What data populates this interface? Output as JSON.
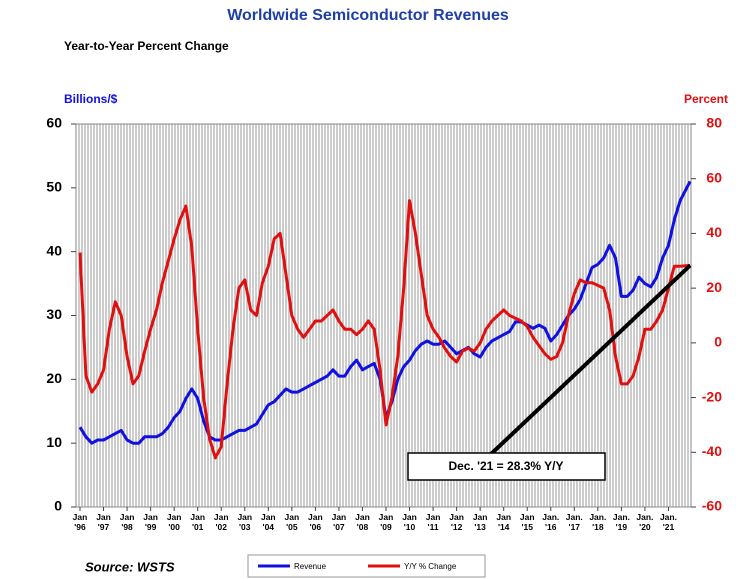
{
  "chart_data": {
    "type": "line",
    "title": "Worldwide Semiconductor Revenues",
    "subtitle": "Year-to-Year Percent Change",
    "y_label": "Billions/$",
    "y2_label": "Percent",
    "source": "Source: WSTS",
    "annotation": "Dec. '21 = 28.3% Y/Y",
    "xlim": [
      1996,
      2022
    ],
    "xticks": [
      {
        "value": 1996,
        "label": "Jan '96"
      },
      {
        "value": 1997,
        "label": "Jan '97"
      },
      {
        "value": 1998,
        "label": "Jan '98"
      },
      {
        "value": 1999,
        "label": "Jan '99"
      },
      {
        "value": 2000,
        "label": "Jan '00"
      },
      {
        "value": 2001,
        "label": "Jan '01"
      },
      {
        "value": 2002,
        "label": "Jan '02"
      },
      {
        "value": 2003,
        "label": "Jan '03"
      },
      {
        "value": 2004,
        "label": "Jan '04"
      },
      {
        "value": 2005,
        "label": "Jan '05"
      },
      {
        "value": 2006,
        "label": "Jan '06"
      },
      {
        "value": 2007,
        "label": "Jan '07"
      },
      {
        "value": 2008,
        "label": "Jan '08"
      },
      {
        "value": 2009,
        "label": "Jan '09"
      },
      {
        "value": 2010,
        "label": "Jan '10"
      },
      {
        "value": 2011,
        "label": "Jan '11"
      },
      {
        "value": 2012,
        "label": "Jan '12"
      },
      {
        "value": 2013,
        "label": "Jan '13"
      },
      {
        "value": 2014,
        "label": "Jan '14"
      },
      {
        "value": 2015,
        "label": "Jan '15"
      },
      {
        "value": 2016,
        "label": "Jan. '16"
      },
      {
        "value": 2017,
        "label": "Jan. '17"
      },
      {
        "value": 2018,
        "label": "Jan. '18"
      },
      {
        "value": 2019,
        "label": "Jan. '19"
      },
      {
        "value": 2020,
        "label": "Jan. '20"
      },
      {
        "value": 2021,
        "label": "Jan. '21"
      }
    ],
    "ylim": [
      0,
      60
    ],
    "yticks": [
      0,
      10,
      20,
      30,
      40,
      50,
      60
    ],
    "y2lim": [
      -60,
      80
    ],
    "y2ticks": [
      -60,
      -40,
      -20,
      0,
      20,
      40,
      60,
      80
    ],
    "x": [
      1996,
      1996.25,
      1996.5,
      1996.75,
      1997,
      1997.25,
      1997.5,
      1997.75,
      1998,
      1998.25,
      1998.5,
      1998.75,
      1999,
      1999.25,
      1999.5,
      1999.75,
      2000,
      2000.25,
      2000.5,
      2000.75,
      2001,
      2001.25,
      2001.5,
      2001.75,
      2002,
      2002.25,
      2002.5,
      2002.75,
      2003,
      2003.25,
      2003.5,
      2003.75,
      2004,
      2004.25,
      2004.5,
      2004.75,
      2005,
      2005.25,
      2005.5,
      2005.75,
      2006,
      2006.25,
      2006.5,
      2006.75,
      2007,
      2007.25,
      2007.5,
      2007.75,
      2008,
      2008.25,
      2008.5,
      2008.75,
      2009,
      2009.25,
      2009.5,
      2009.75,
      2010,
      2010.25,
      2010.5,
      2010.75,
      2011,
      2011.25,
      2011.5,
      2011.75,
      2012,
      2012.25,
      2012.5,
      2012.75,
      2013,
      2013.25,
      2013.5,
      2013.75,
      2014,
      2014.25,
      2014.5,
      2014.75,
      2015,
      2015.25,
      2015.5,
      2015.75,
      2016,
      2016.25,
      2016.5,
      2016.75,
      2017,
      2017.25,
      2017.5,
      2017.75,
      2018,
      2018.25,
      2018.5,
      2018.75,
      2019,
      2019.25,
      2019.5,
      2019.75,
      2020,
      2020.25,
      2020.5,
      2020.75,
      2021,
      2021.25,
      2021.5,
      2021.92
    ],
    "series": [
      {
        "name": "Revenue",
        "color": "#1010e0",
        "axis": "y",
        "values": [
          12.5,
          11,
          10,
          10.5,
          10.5,
          11,
          11.5,
          12,
          10.5,
          10,
          10,
          11,
          11,
          11,
          11.5,
          12.5,
          14,
          15,
          17,
          18.5,
          17,
          13.5,
          11,
          10.5,
          10.5,
          11,
          11.5,
          12,
          12,
          12.5,
          13,
          14.5,
          16,
          16.5,
          17.5,
          18.5,
          18,
          18,
          18.5,
          19,
          19.5,
          20,
          20.5,
          21.5,
          20.5,
          20.5,
          22,
          23,
          21.5,
          22,
          22.5,
          20,
          14,
          16.5,
          20,
          22,
          23,
          24.5,
          25.5,
          26,
          25.5,
          25.5,
          26,
          25,
          24,
          24.5,
          25,
          24,
          23.5,
          25,
          26,
          26.5,
          27,
          27.5,
          29,
          29,
          28.5,
          28,
          28.5,
          28,
          26,
          27,
          28.5,
          30,
          31,
          32.5,
          35,
          37.5,
          38,
          39,
          41,
          39,
          33,
          33,
          34,
          36,
          35,
          34.5,
          36,
          39,
          41,
          45,
          48,
          51
        ]
      },
      {
        "name": "Y/Y % Change",
        "color": "#e01010",
        "axis": "y2",
        "values": [
          33,
          -12,
          -18,
          -15,
          -10,
          5,
          15,
          10,
          -5,
          -15,
          -12,
          -3,
          5,
          12,
          22,
          30,
          38,
          45,
          50,
          35,
          5,
          -20,
          -35,
          -42,
          -38,
          -15,
          5,
          20,
          23,
          12,
          10,
          22,
          28,
          38,
          40,
          25,
          10,
          5,
          2,
          5,
          8,
          8,
          10,
          12,
          8,
          5,
          5,
          3,
          5,
          8,
          5,
          -10,
          -30,
          -20,
          -5,
          20,
          52,
          40,
          25,
          10,
          5,
          2,
          -2,
          -5,
          -7,
          -3,
          -2,
          -3,
          0,
          5,
          8,
          10,
          12,
          10,
          9,
          8,
          6,
          2,
          -1,
          -4,
          -6,
          -5,
          0,
          10,
          18,
          23,
          22,
          22,
          21,
          20,
          12,
          -5,
          -15,
          -15,
          -12,
          -5,
          5,
          5,
          8,
          12,
          20,
          28,
          28,
          28.3
        ]
      }
    ]
  }
}
